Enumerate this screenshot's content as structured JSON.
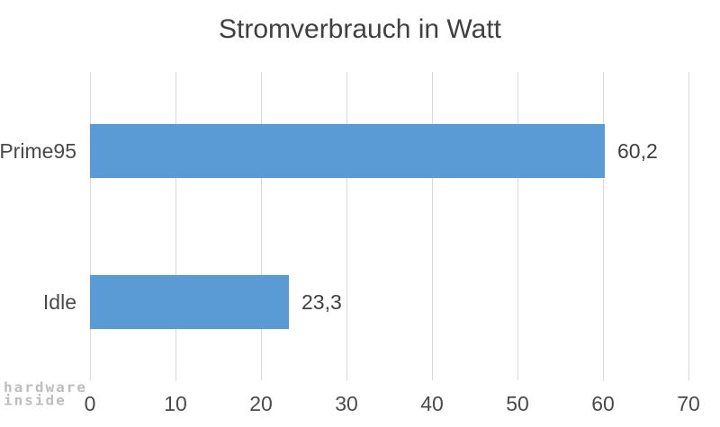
{
  "watermark": {
    "line1": "hardware",
    "line2": "inside"
  },
  "chart_data": {
    "type": "bar",
    "orientation": "horizontal",
    "title": "Stromverbrauch in Watt",
    "categories": [
      "Prime95",
      "Idle"
    ],
    "values": [
      60.2,
      23.3
    ],
    "value_labels": [
      "60,2",
      "23,3"
    ],
    "xlabel": "",
    "ylabel": "",
    "xlim": [
      0,
      70
    ],
    "x_ticks": [
      0,
      10,
      20,
      30,
      40,
      50,
      60,
      70
    ],
    "x_tick_labels": [
      "0",
      "10",
      "20",
      "30",
      "40",
      "50",
      "60",
      "70"
    ],
    "grid": "vertical",
    "legend": "none",
    "colors": {
      "bar": "#5b9bd5",
      "gridline": "#d9d9d9",
      "title_text": "#404040",
      "label_text": "#4a4a4a",
      "watermark": "#bdbdbd"
    }
  }
}
